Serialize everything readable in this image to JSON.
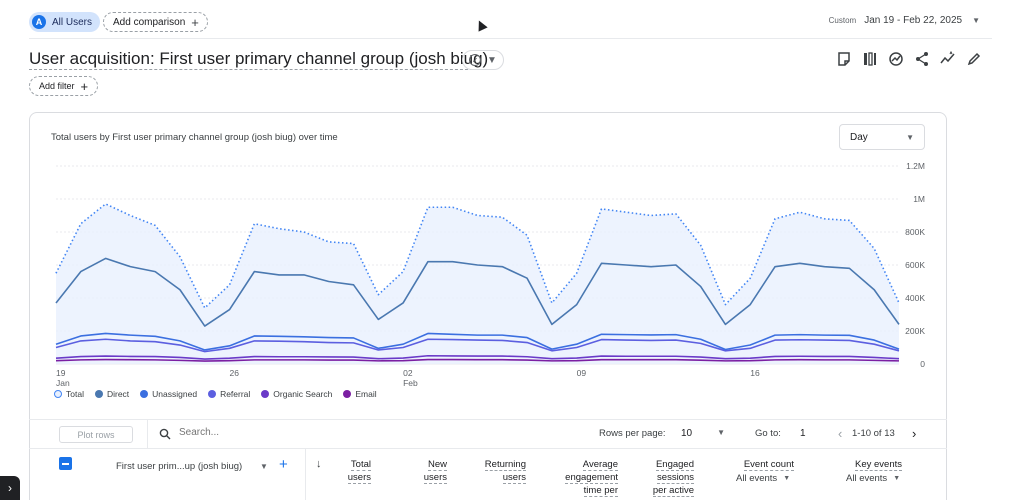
{
  "header": {
    "segment_badge": "A",
    "segment_label": "All Users",
    "add_comparison": "Add comparison",
    "date_mode": "Custom",
    "date_range": "Jan 19 - Feb 22, 2025"
  },
  "report": {
    "title": "User acquisition: First user primary channel group (josh biug)",
    "add_filter": "Add filter"
  },
  "chart_card": {
    "title": "Total users by First user primary channel group (josh biug) over time",
    "granularity": "Day"
  },
  "chart_data": {
    "type": "line",
    "title": "Total users by First user primary channel group (josh biug) over time",
    "y_ticks": [
      "1.2M",
      "1M",
      "800K",
      "600K",
      "400K",
      "200K",
      "0"
    ],
    "ylim": [
      0,
      1200000
    ],
    "x_tick_labels": [
      {
        "day": "19",
        "month": "Jan",
        "index": 0
      },
      {
        "day": "26",
        "month": "",
        "index": 7
      },
      {
        "day": "02",
        "month": "Feb",
        "index": 14
      },
      {
        "day": "09",
        "month": "",
        "index": 21
      },
      {
        "day": "16",
        "month": "",
        "index": 28
      }
    ],
    "grid": true,
    "legend_placement": "bottom-left",
    "series": [
      {
        "name": "Total",
        "color": "#4285f4",
        "style": "dotted",
        "fill": true,
        "values": [
          550000,
          850000,
          970000,
          900000,
          840000,
          650000,
          340000,
          480000,
          850000,
          820000,
          800000,
          740000,
          730000,
          420000,
          560000,
          950000,
          950000,
          900000,
          890000,
          780000,
          370000,
          550000,
          940000,
          920000,
          900000,
          910000,
          720000,
          360000,
          520000,
          880000,
          920000,
          880000,
          870000,
          700000,
          370000
        ]
      },
      {
        "name": "Direct",
        "color": "#4a78b0",
        "style": "solid",
        "values": [
          370000,
          560000,
          640000,
          590000,
          560000,
          450000,
          230000,
          330000,
          560000,
          540000,
          540000,
          500000,
          480000,
          270000,
          370000,
          620000,
          620000,
          600000,
          590000,
          520000,
          240000,
          360000,
          610000,
          600000,
          590000,
          600000,
          470000,
          240000,
          360000,
          590000,
          610000,
          590000,
          580000,
          450000,
          240000
        ]
      },
      {
        "name": "Unassigned",
        "color": "#3b6fe0",
        "style": "solid",
        "values": [
          120000,
          170000,
          185000,
          175000,
          168000,
          140000,
          85000,
          110000,
          170000,
          168000,
          165000,
          160000,
          158000,
          95000,
          120000,
          185000,
          180000,
          175000,
          175000,
          160000,
          90000,
          120000,
          180000,
          178000,
          176000,
          178000,
          150000,
          88000,
          115000,
          175000,
          178000,
          175000,
          174000,
          145000,
          90000
        ]
      },
      {
        "name": "Referral",
        "color": "#5c5fe0",
        "style": "solid",
        "values": [
          100000,
          140000,
          150000,
          140000,
          135000,
          115000,
          75000,
          95000,
          140000,
          138000,
          135000,
          130000,
          128000,
          85000,
          100000,
          150000,
          148000,
          145000,
          143000,
          130000,
          80000,
          100000,
          148000,
          145000,
          143000,
          145000,
          125000,
          80000,
          95000,
          145000,
          147000,
          145000,
          143000,
          120000,
          80000
        ]
      },
      {
        "name": "Organic Search",
        "color": "#6a3ac8",
        "style": "solid",
        "values": [
          35000,
          45000,
          48000,
          46000,
          45000,
          40000,
          30000,
          35000,
          45000,
          44000,
          44000,
          43000,
          42000,
          32000,
          36000,
          50000,
          49000,
          48000,
          48000,
          44000,
          32000,
          36000,
          48000,
          47000,
          47000,
          47000,
          42000,
          32000,
          35000,
          46000,
          47000,
          46000,
          46000,
          40000,
          32000
        ]
      },
      {
        "name": "Email",
        "color": "#7b1fa2",
        "style": "solid",
        "values": [
          20000,
          25000,
          27000,
          26000,
          25000,
          22000,
          18000,
          20000,
          25000,
          25000,
          25000,
          24000,
          24000,
          19000,
          20000,
          27000,
          27000,
          26000,
          26000,
          24000,
          19000,
          20000,
          26000,
          26000,
          26000,
          26000,
          23000,
          19000,
          20000,
          25000,
          26000,
          25000,
          25000,
          22000,
          19000
        ]
      }
    ]
  },
  "table": {
    "plot_rows": "Plot rows",
    "search_placeholder": "Search...",
    "rows_per_page_label": "Rows per page:",
    "rows_per_page_value": "10",
    "goto_label": "Go to:",
    "goto_value": "1",
    "range_label": "1-10 of 13",
    "dimension_header": "First user prim...up (josh biug)",
    "columns": [
      {
        "line1": "Total",
        "line2": "users"
      },
      {
        "line1": "New",
        "line2": "users"
      },
      {
        "line1": "Returning",
        "line2": "users"
      },
      {
        "line1": "Average",
        "line2": "engagement",
        "line3": "time per"
      },
      {
        "line1": "Engaged",
        "line2": "sessions",
        "line3": "per active"
      },
      {
        "line1": "Event count",
        "selector": "All events"
      },
      {
        "line1": "Key events",
        "selector": "All events"
      }
    ]
  },
  "icons": [
    "edit-note-icon",
    "compare-columns-icon",
    "insights-icon",
    "share-icon",
    "trend-icon",
    "pencil-icon",
    "search-icon",
    "sort-down-icon",
    "check-circle-icon"
  ]
}
